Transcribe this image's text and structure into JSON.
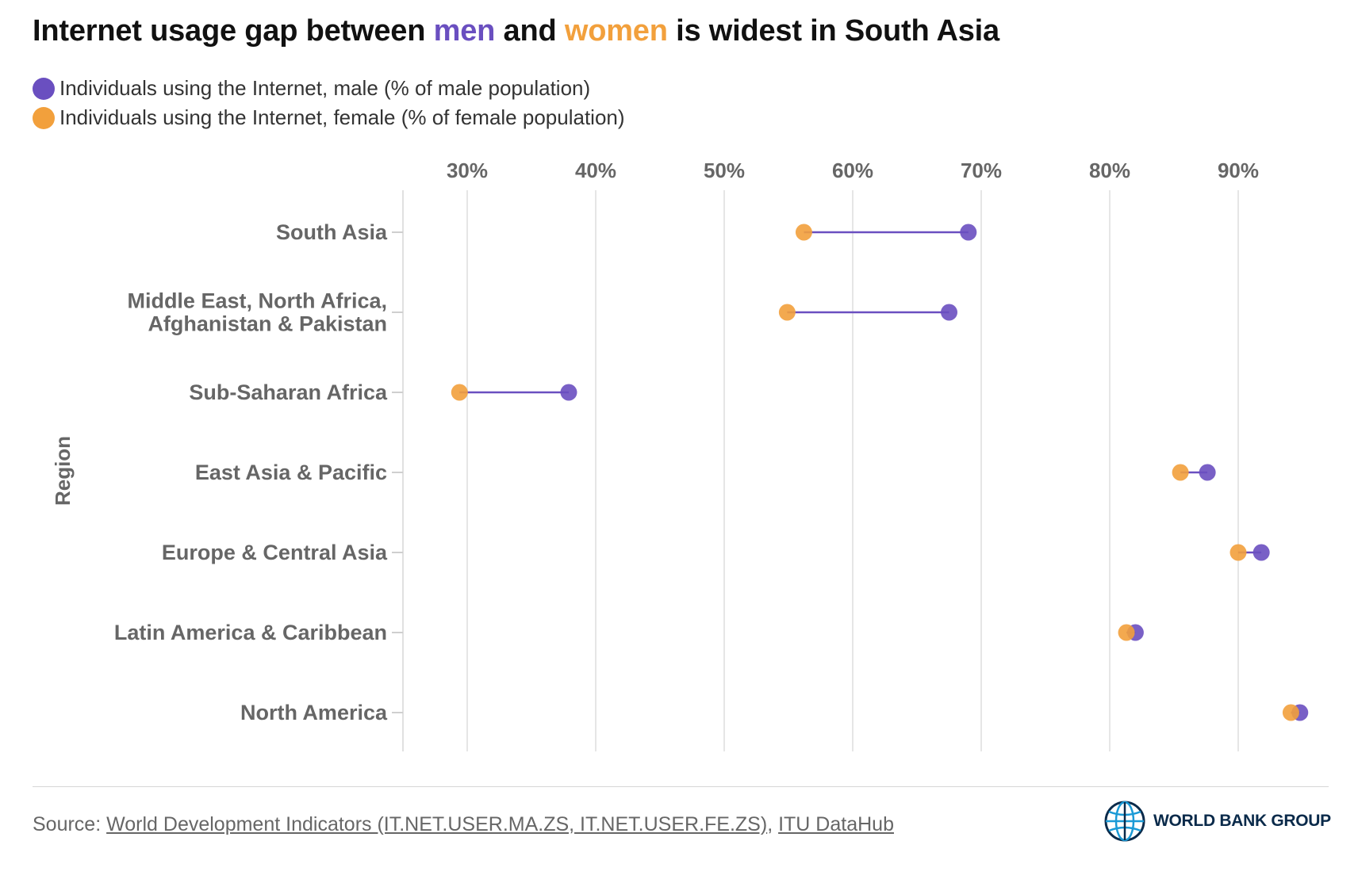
{
  "title": {
    "part1": "Internet usage gap between ",
    "men": "men",
    "part2": " and ",
    "women": "women",
    "part3": " is widest in South Asia"
  },
  "legend": [
    {
      "label": "Individuals using the Internet, male (% of male population)",
      "color": "#6a4fc0"
    },
    {
      "label": "Individuals using the Internet, female (% of female population)",
      "color": "#f2a03c"
    }
  ],
  "chart_data": {
    "type": "dumbbell",
    "ylabel": "Region",
    "xlabel": "",
    "xlim": [
      25,
      96
    ],
    "xticks": [
      30,
      40,
      50,
      60,
      70,
      80,
      90
    ],
    "xtick_labels": [
      "30%",
      "40%",
      "50%",
      "60%",
      "70%",
      "80%",
      "90%"
    ],
    "grid": true,
    "categories": [
      [
        "South Asia"
      ],
      [
        "Middle East, North Africa,",
        "Afghanistan & Pakistan"
      ],
      [
        "Sub-Saharan Africa"
      ],
      [
        "East Asia & Pacific"
      ],
      [
        "Europe & Central Asia"
      ],
      [
        "Latin America & Caribbean"
      ],
      [
        "North America"
      ]
    ],
    "series": [
      {
        "name": "Individuals using the Internet, male (% of male population)",
        "color": "#6a4fc0",
        "values": [
          69.0,
          67.5,
          37.9,
          87.6,
          91.8,
          82.0,
          94.8
        ]
      },
      {
        "name": "Individuals using the Internet, female (% of female population)",
        "color": "#f2a03c",
        "values": [
          56.2,
          54.9,
          29.4,
          85.5,
          90.0,
          81.3,
          94.1
        ]
      }
    ]
  },
  "footer": {
    "source_prefix": "Source: ",
    "source_link1": "World Development Indicators (IT.NET.USER.MA.ZS, IT.NET.USER.FE.ZS)",
    "source_sep": ", ",
    "source_link2": "ITU DataHub",
    "logo_text": "WORLD BANK GROUP"
  }
}
